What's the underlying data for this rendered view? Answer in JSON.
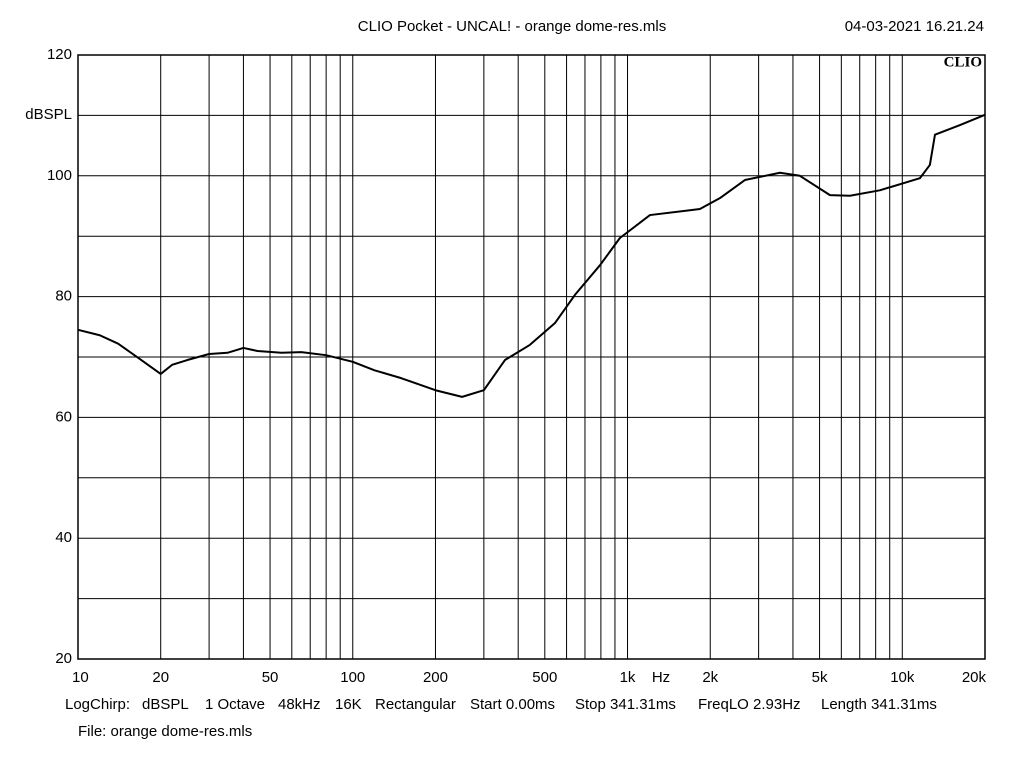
{
  "chart_data": {
    "type": "line",
    "title": "CLIO Pocket - UNCAL! - orange dome-res.mls",
    "date": "04-03-2021 16.21.24",
    "logo": "CLIO",
    "ylabel": "dBSPL",
    "xlabel": "Hz",
    "footer": [
      "LogChirp:",
      "dBSPL",
      "1 Octave",
      "48kHz",
      "16K",
      "Rectangular",
      "Start 0.00ms",
      "Stop 341.31ms",
      "FreqLO 2.93Hz",
      "Length 341.31ms"
    ],
    "file": "File: orange dome-res.mls",
    "xscale": "log",
    "grid": true,
    "xlim": [
      10,
      20000
    ],
    "ylim": [
      20,
      120
    ],
    "xticks": [
      10,
      20,
      50,
      100,
      200,
      500,
      {
        "value": 1000,
        "label": "1k"
      },
      {
        "value": 2000,
        "label": "2k"
      },
      {
        "value": 5000,
        "label": "5k"
      },
      {
        "value": 10000,
        "label": "10k"
      },
      {
        "value": 20000,
        "label": "20k"
      }
    ],
    "xminor": [
      30,
      40,
      60,
      70,
      80,
      90,
      300,
      400,
      600,
      700,
      800,
      900,
      3000,
      4000,
      6000,
      7000,
      8000,
      9000
    ],
    "yticks": [
      20,
      40,
      60,
      80,
      100,
      120
    ],
    "yminor": [
      30,
      50,
      70,
      90,
      110
    ],
    "x": [
      10,
      12,
      14,
      17,
      20,
      22,
      25,
      30,
      35,
      40,
      45,
      55,
      65,
      80,
      100,
      120,
      150,
      200,
      250,
      300,
      358,
      441,
      544,
      644,
      794,
      938,
      1207,
      1687,
      1834,
      2168,
      2674,
      3586,
      4238,
      5454,
      6447,
      8283,
      11590,
      12600,
      13150,
      16220,
      20000
    ],
    "series": [
      {
        "name": "response",
        "color": "#000000",
        "values": [
          74.5,
          73.6,
          72.2,
          69.5,
          67.2,
          68.7,
          69.5,
          70.5,
          70.7,
          71.5,
          71.0,
          70.7,
          70.8,
          70.3,
          69.2,
          67.8,
          66.5,
          64.5,
          63.4,
          64.5,
          69.5,
          72.0,
          75.6,
          80.3,
          85.2,
          89.7,
          93.5,
          94.3,
          94.5,
          96.3,
          99.3,
          100.5,
          100.0,
          96.8,
          96.7,
          97.6,
          99.6,
          101.8,
          106.8,
          108.4,
          110.1
        ]
      }
    ]
  }
}
